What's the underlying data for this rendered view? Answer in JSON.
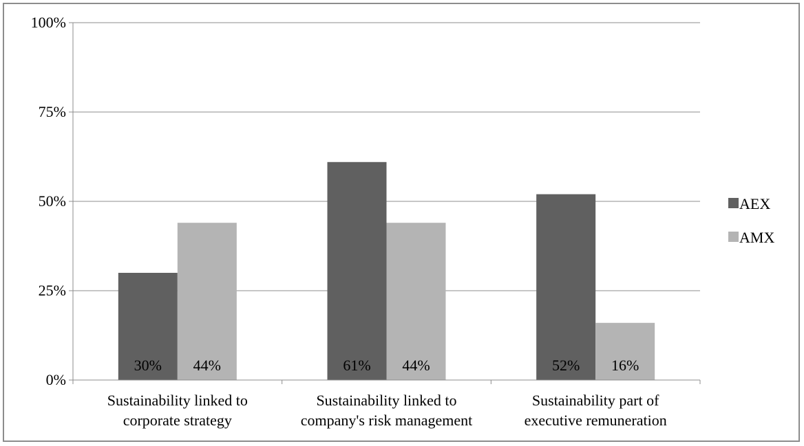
{
  "chart_data": {
    "type": "bar",
    "title": "",
    "xlabel": "",
    "ylabel": "",
    "ylim": [
      0,
      1
    ],
    "y_ticks": [
      "0%",
      "25%",
      "50%",
      "75%",
      "100%"
    ],
    "grid": true,
    "legend_position": "right",
    "categories": [
      [
        "Sustainability linked to",
        "corporate strategy"
      ],
      [
        "Sustainability linked to",
        "company's risk management"
      ],
      [
        "Sustainability part of",
        "executive remuneration"
      ]
    ],
    "series": [
      {
        "name": "AEX",
        "color": "#606060",
        "values": [
          0.3,
          0.61,
          0.52
        ],
        "labels": [
          "30%",
          "61%",
          "52%"
        ]
      },
      {
        "name": "AMX",
        "color": "#b4b4b4",
        "values": [
          0.44,
          0.44,
          0.16
        ],
        "labels": [
          "44%",
          "44%",
          "16%"
        ]
      }
    ]
  }
}
